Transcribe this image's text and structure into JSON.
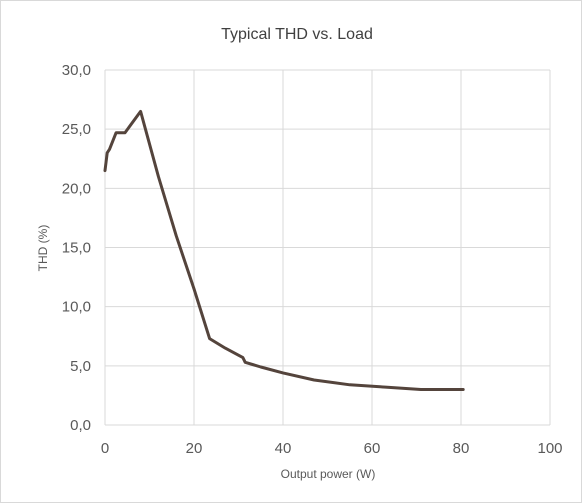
{
  "chart_data": {
    "type": "line",
    "title": "Typical THD vs. Load",
    "xlabel": "Output power (W)",
    "ylabel": "THD (%)",
    "xlim": [
      0,
      100
    ],
    "ylim": [
      0,
      30
    ],
    "x_ticks": [
      0,
      20,
      40,
      60,
      80,
      100
    ],
    "x_tick_labels": [
      "0",
      "20",
      "40",
      "60",
      "80",
      "100"
    ],
    "y_ticks": [
      0,
      5,
      10,
      15,
      20,
      25,
      30
    ],
    "y_tick_labels": [
      "0,0",
      "5,0",
      "10,0",
      "15,0",
      "20,0",
      "25,0",
      "30,0"
    ],
    "grid": "vertical and horizontal",
    "series": [
      {
        "color": "#54443c",
        "points": [
          [
            0,
            21.5
          ],
          [
            0.5,
            23.0
          ],
          [
            1.0,
            23.3
          ],
          [
            2.5,
            24.7
          ],
          [
            4.5,
            24.7
          ],
          [
            8.0,
            26.5
          ],
          [
            12.0,
            21.0
          ],
          [
            16.0,
            16.0
          ],
          [
            20.0,
            11.5
          ],
          [
            23.5,
            7.3
          ],
          [
            27.0,
            6.5
          ],
          [
            31.0,
            5.7
          ],
          [
            31.5,
            5.3
          ],
          [
            35.0,
            4.9
          ],
          [
            40.0,
            4.4
          ],
          [
            47.0,
            3.8
          ],
          [
            55.0,
            3.4
          ],
          [
            63.0,
            3.2
          ],
          [
            71.0,
            3.0
          ],
          [
            80.5,
            3.0
          ]
        ]
      }
    ]
  }
}
